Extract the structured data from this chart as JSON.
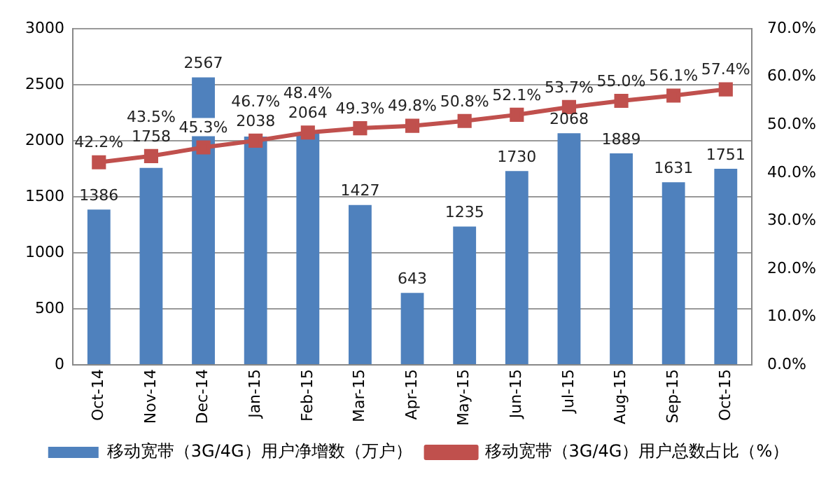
{
  "chart_data": {
    "type": "bar",
    "categories": [
      "Oct-14",
      "Nov-14",
      "Dec-14",
      "Jan-15",
      "Feb-15",
      "Mar-15",
      "Apr-15",
      "May-15",
      "Jun-15",
      "Jul-15",
      "Aug-15",
      "Sep-15",
      "Oct-15"
    ],
    "series": [
      {
        "name": "移动宽带（3G/4G）用户净增数（万户）",
        "color": "#4f81bd",
        "values": [
          1386,
          1758,
          2567,
          2038,
          2064,
          1427,
          643,
          1235,
          1730,
          2068,
          1889,
          1631,
          1751
        ],
        "value_labels": [
          "1386",
          "1758",
          "2567",
          "2038",
          "2064",
          "1427",
          "643",
          "1235",
          "1730",
          "2068",
          "1889",
          "1631",
          "1751"
        ]
      },
      {
        "name": "移动宽带（3G/4G）用户总数占比（%）",
        "type": "line",
        "axis": "y2",
        "color": "#c0504d",
        "marker": "square",
        "values": [
          42.2,
          43.5,
          45.3,
          46.7,
          48.4,
          49.3,
          49.8,
          50.8,
          52.1,
          53.7,
          55.0,
          56.1,
          57.4
        ],
        "value_labels": [
          "42.2%",
          "43.5%",
          "45.3%",
          "46.7%",
          "48.4%",
          "49.3%",
          "49.8%",
          "50.8%",
          "52.1%",
          "53.7%",
          "55.0%",
          "56.1%",
          "57.4%"
        ]
      }
    ],
    "ylim": [
      0,
      3000
    ],
    "yticks": [
      0,
      500,
      1000,
      1500,
      2000,
      2500,
      3000
    ],
    "y2lim": [
      0,
      70
    ],
    "y2ticks": [
      {
        "value": 0,
        "label": "0.0%"
      },
      {
        "value": 10,
        "label": "10.0%"
      },
      {
        "value": 20,
        "label": "20.0%"
      },
      {
        "value": 30,
        "label": "30.0%"
      },
      {
        "value": 40,
        "label": "40.0%"
      },
      {
        "value": 50,
        "label": "50.0%"
      },
      {
        "value": 60,
        "label": "60.0%"
      },
      {
        "value": 70,
        "label": "70.0%"
      }
    ],
    "grid": "y",
    "legend": "bottom"
  }
}
